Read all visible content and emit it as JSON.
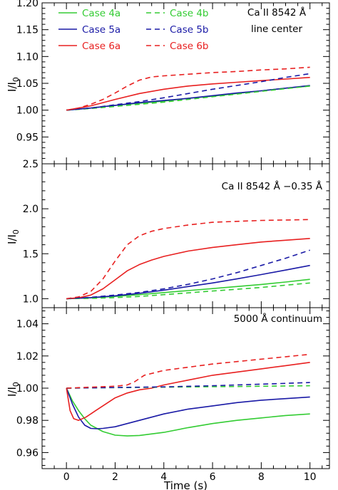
{
  "chart_data": [
    {
      "type": "line",
      "panel": "top",
      "annotation": [
        "Ca II 8542 Å",
        "line center"
      ],
      "xlim": [
        -1,
        10.8
      ],
      "ylim": [
        0.9,
        1.2
      ],
      "yticks": [
        0.95,
        1.0,
        1.05,
        1.1,
        1.15,
        1.2
      ],
      "ytick_labels": [
        "0.95",
        "1.00",
        "1.05",
        "1.10",
        "1.15",
        "1.20"
      ],
      "ylabel": "I/I",
      "ylabel_sub": "0",
      "legend_placement": "top-left",
      "series": [
        {
          "name": "Case 4a",
          "color": "#33cc33",
          "dashed": false,
          "x": [
            0,
            1,
            2,
            3,
            4,
            5,
            6,
            7,
            8,
            9,
            10
          ],
          "y": [
            1.0,
            1.004,
            1.009,
            1.013,
            1.017,
            1.022,
            1.026,
            1.031,
            1.036,
            1.041,
            1.045
          ]
        },
        {
          "name": "Case 5a",
          "color": "#1a1aa6",
          "dashed": false,
          "x": [
            0,
            1,
            2,
            3,
            4,
            5,
            6,
            7,
            8,
            9,
            10
          ],
          "y": [
            1.0,
            1.004,
            1.009,
            1.014,
            1.018,
            1.022,
            1.027,
            1.032,
            1.036,
            1.041,
            1.046
          ]
        },
        {
          "name": "Case 6a",
          "color": "#e82020",
          "dashed": false,
          "x": [
            0,
            1,
            2,
            3,
            4,
            5,
            6,
            7,
            8,
            9,
            10
          ],
          "y": [
            1.0,
            1.008,
            1.02,
            1.031,
            1.039,
            1.045,
            1.049,
            1.052,
            1.055,
            1.058,
            1.061
          ]
        },
        {
          "name": "Case 4b",
          "color": "#33cc33",
          "dashed": true,
          "x": [
            0,
            1,
            2,
            3,
            4,
            5,
            6,
            7,
            8,
            9,
            10
          ],
          "y": [
            1.0,
            1.003,
            1.007,
            1.011,
            1.015,
            1.02,
            1.025,
            1.03,
            1.035,
            1.04,
            1.045
          ]
        },
        {
          "name": "Case 5b",
          "color": "#1a1aa6",
          "dashed": true,
          "x": [
            0,
            1,
            2,
            3,
            4,
            5,
            6,
            7,
            8,
            9,
            10
          ],
          "y": [
            1.0,
            1.004,
            1.01,
            1.016,
            1.023,
            1.031,
            1.039,
            1.046,
            1.053,
            1.061,
            1.068
          ]
        },
        {
          "name": "Case 6b",
          "color": "#e82020",
          "dashed": true,
          "x": [
            0,
            0.5,
            1,
            1.5,
            2,
            2.5,
            3,
            3.5,
            4,
            5,
            6,
            7,
            8,
            9,
            10
          ],
          "y": [
            1.0,
            1.004,
            1.011,
            1.02,
            1.032,
            1.045,
            1.056,
            1.062,
            1.064,
            1.067,
            1.07,
            1.072,
            1.075,
            1.077,
            1.08
          ]
        }
      ]
    },
    {
      "type": "line",
      "panel": "middle",
      "annotation": [
        "Ca II 8542 Å −0.35 Å"
      ],
      "xlim": [
        -1,
        10.8
      ],
      "ylim": [
        0.9,
        2.5
      ],
      "yticks": [
        1.0,
        1.5,
        2.0,
        2.5
      ],
      "ytick_labels": [
        "1.0",
        "1.5",
        "2.0",
        "2.5"
      ],
      "ylabel": "I/I",
      "ylabel_sub": "0",
      "series": [
        {
          "name": "Case 4a",
          "color": "#33cc33",
          "dashed": false,
          "x": [
            0,
            1,
            2,
            3,
            4,
            5,
            6,
            7,
            8,
            9,
            10
          ],
          "y": [
            1.0,
            1.01,
            1.025,
            1.045,
            1.068,
            1.09,
            1.112,
            1.135,
            1.158,
            1.185,
            1.215
          ]
        },
        {
          "name": "Case 5a",
          "color": "#1a1aa6",
          "dashed": false,
          "x": [
            0,
            1,
            2,
            3,
            4,
            5,
            6,
            7,
            8,
            9,
            10
          ],
          "y": [
            1.0,
            1.012,
            1.032,
            1.06,
            1.095,
            1.135,
            1.175,
            1.22,
            1.268,
            1.318,
            1.37
          ]
        },
        {
          "name": "Case 6a",
          "color": "#e82020",
          "dashed": false,
          "x": [
            0,
            0.5,
            1,
            1.5,
            2,
            2.5,
            3,
            3.5,
            4,
            5,
            6,
            7,
            8,
            9,
            10
          ],
          "y": [
            1.0,
            1.01,
            1.04,
            1.11,
            1.21,
            1.31,
            1.38,
            1.43,
            1.47,
            1.53,
            1.57,
            1.6,
            1.63,
            1.65,
            1.67
          ]
        },
        {
          "name": "Case 4b",
          "color": "#33cc33",
          "dashed": true,
          "x": [
            0,
            1,
            2,
            3,
            4,
            5,
            6,
            7,
            8,
            9,
            10
          ],
          "y": [
            1.0,
            1.004,
            1.012,
            1.025,
            1.045,
            1.065,
            1.085,
            1.105,
            1.125,
            1.15,
            1.175
          ]
        },
        {
          "name": "Case 5b",
          "color": "#1a1aa6",
          "dashed": true,
          "x": [
            0,
            1,
            2,
            3,
            4,
            5,
            6,
            7,
            8,
            9,
            10
          ],
          "y": [
            1.0,
            1.015,
            1.04,
            1.07,
            1.11,
            1.16,
            1.22,
            1.29,
            1.37,
            1.45,
            1.54
          ]
        },
        {
          "name": "Case 6b",
          "color": "#e82020",
          "dashed": true,
          "x": [
            0,
            0.5,
            1,
            1.5,
            2,
            2.5,
            3,
            3.5,
            4,
            5,
            6,
            7,
            8,
            9,
            10
          ],
          "y": [
            1.0,
            1.02,
            1.08,
            1.22,
            1.42,
            1.6,
            1.7,
            1.75,
            1.78,
            1.82,
            1.85,
            1.86,
            1.87,
            1.875,
            1.88
          ]
        }
      ]
    },
    {
      "type": "line",
      "panel": "bottom",
      "annotation": [
        "5000 Å continuum"
      ],
      "xlim": [
        -1,
        10.8
      ],
      "ylim": [
        0.95,
        1.05
      ],
      "yticks": [
        0.96,
        0.98,
        1.0,
        1.02,
        1.04
      ],
      "ytick_labels": [
        "0.96",
        "0.98",
        "1.00",
        "1.02",
        "1.04"
      ],
      "ylabel": "I/I",
      "ylabel_sub": "0",
      "xlabel": "Time (s)",
      "xticks": [
        0,
        2,
        4,
        6,
        8,
        10
      ],
      "xtick_labels": [
        "0",
        "2",
        "4",
        "6",
        "8",
        "10"
      ],
      "series": [
        {
          "name": "Case 4a",
          "color": "#33cc33",
          "dashed": false,
          "x": [
            0,
            0.25,
            0.5,
            0.75,
            1,
            1.5,
            2,
            2.5,
            3,
            4,
            5,
            6,
            7,
            8,
            9,
            10
          ],
          "y": [
            1.0,
            0.992,
            0.986,
            0.981,
            0.977,
            0.973,
            0.9708,
            0.9703,
            0.9706,
            0.9725,
            0.9755,
            0.978,
            0.98,
            0.9815,
            0.983,
            0.984
          ]
        },
        {
          "name": "Case 5a",
          "color": "#1a1aa6",
          "dashed": false,
          "x": [
            0,
            0.25,
            0.5,
            0.75,
            1,
            1.25,
            1.5,
            2,
            2.5,
            3,
            4,
            5,
            6,
            7,
            8,
            9,
            10
          ],
          "y": [
            1.0,
            0.99,
            0.982,
            0.977,
            0.975,
            0.9748,
            0.975,
            0.976,
            0.978,
            0.98,
            0.984,
            0.987,
            0.989,
            0.991,
            0.9925,
            0.9935,
            0.9945
          ]
        },
        {
          "name": "Case 6a",
          "color": "#e82020",
          "dashed": false,
          "x": [
            0,
            0.15,
            0.3,
            0.5,
            0.8,
            1.2,
            1.6,
            2,
            2.5,
            3,
            3.5,
            4,
            5,
            6,
            7,
            8,
            9,
            10
          ],
          "y": [
            1.0,
            0.986,
            0.981,
            0.98,
            0.982,
            0.986,
            0.99,
            0.994,
            0.997,
            0.999,
            1.0,
            1.002,
            1.005,
            1.008,
            1.01,
            1.012,
            1.014,
            1.016
          ]
        },
        {
          "name": "Case 4b",
          "color": "#33cc33",
          "dashed": true,
          "x": [
            0,
            2,
            4,
            6,
            8,
            10
          ],
          "y": [
            1.0,
            1.0003,
            1.0006,
            1.0009,
            1.0012,
            1.0015
          ]
        },
        {
          "name": "Case 5b",
          "color": "#1a1aa6",
          "dashed": true,
          "x": [
            0,
            2,
            4,
            6,
            8,
            10
          ],
          "y": [
            1.0,
            1.0004,
            1.0008,
            1.0015,
            1.0025,
            1.0035
          ]
        },
        {
          "name": "Case 6b",
          "color": "#e82020",
          "dashed": true,
          "x": [
            0,
            1,
            2,
            2.5,
            2.8,
            3.2,
            4,
            5,
            6,
            7,
            8,
            9,
            10
          ],
          "y": [
            1.0,
            1.0006,
            1.0012,
            1.002,
            1.004,
            1.008,
            1.011,
            1.013,
            1.015,
            1.0165,
            1.018,
            1.0195,
            1.021
          ]
        }
      ]
    }
  ]
}
